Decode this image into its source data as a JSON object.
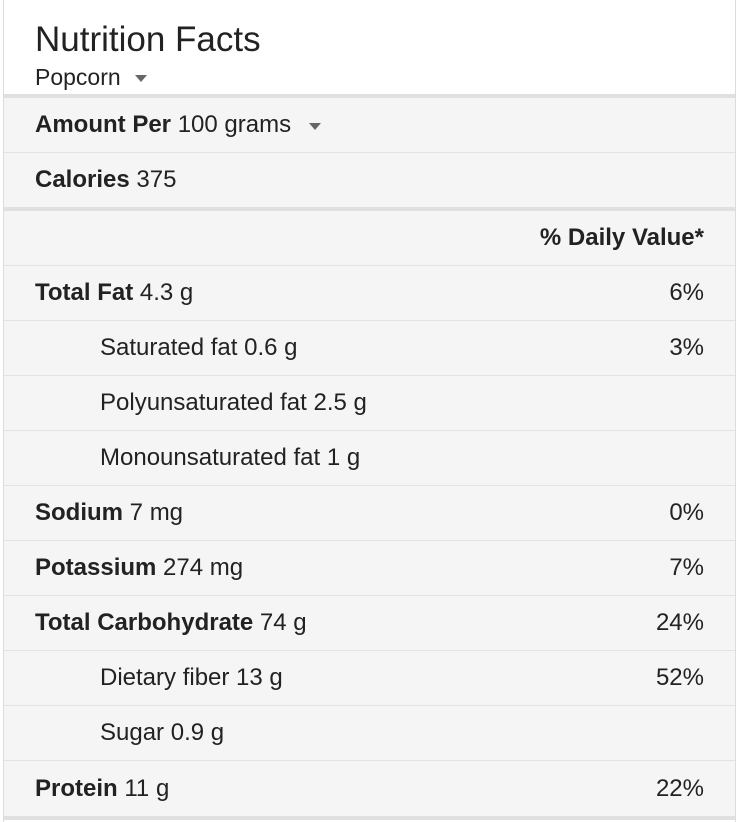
{
  "title": "Nutrition Facts",
  "food": {
    "selected": "Popcorn",
    "icon": "chevron-down-icon"
  },
  "serving": {
    "label": "Amount Per",
    "selected": "100 grams",
    "icon": "chevron-down-icon"
  },
  "calories": {
    "label": "Calories",
    "value": "375"
  },
  "daily_value_header": "% Daily Value*",
  "nutrients": [
    {
      "name": "Total Fat",
      "amount": "4.3 g",
      "dv": "6%"
    },
    {
      "name": "Saturated fat",
      "amount": "0.6 g",
      "dv": "3%"
    },
    {
      "name": "Polyunsaturated fat",
      "amount": "2.5 g",
      "dv": ""
    },
    {
      "name": "Monounsaturated fat",
      "amount": "1 g",
      "dv": ""
    },
    {
      "name": "Sodium",
      "amount": "7 mg",
      "dv": "0%"
    },
    {
      "name": "Potassium",
      "amount": "274 mg",
      "dv": "7%"
    },
    {
      "name": "Total Carbohydrate",
      "amount": "74 g",
      "dv": "24%"
    },
    {
      "name": "Dietary fiber",
      "amount": "13 g",
      "dv": "52%"
    },
    {
      "name": "Sugar",
      "amount": "0.9 g",
      "dv": ""
    },
    {
      "name": "Protein",
      "amount": "11 g",
      "dv": "22%"
    }
  ],
  "colors": {
    "row_bg": "#f5f5f5",
    "divider": "#e2e2e2",
    "thick_divider": "#e0e0e0",
    "text": "#222222"
  }
}
